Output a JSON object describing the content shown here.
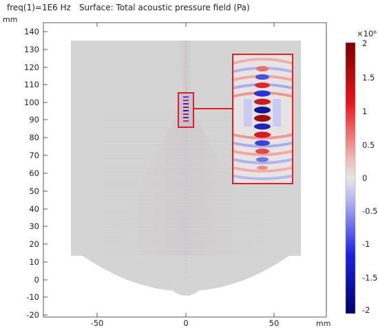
{
  "header": {
    "freq_label": "freq(1)=1E6 Hz",
    "surface_label": "Surface: Total acoustic pressure field (Pa)"
  },
  "axes": {
    "y_unit": "mm",
    "x_unit": "mm",
    "y_ticks": [
      "140",
      "130",
      "120",
      "110",
      "100",
      "90",
      "80",
      "70",
      "60",
      "50",
      "40",
      "30",
      "20",
      "10",
      "0",
      "-10",
      "-20"
    ],
    "x_ticks": [
      "-50",
      "0",
      "50"
    ]
  },
  "colorbar": {
    "multiplier": "×10⁶",
    "ticks": [
      "2",
      "1.5",
      "1",
      "0.5",
      "0",
      "-0.5",
      "-1",
      "-1.5",
      "-2"
    ],
    "colors": {
      "high": "#8b0000",
      "mid_high": "#e8141a",
      "zero": "#d9d9d9",
      "mid_low": "#1c22e0",
      "low": "#00008b"
    }
  },
  "colors": {
    "domain_fill": "#d4d4d4",
    "highlight_box": "#e02020"
  }
}
